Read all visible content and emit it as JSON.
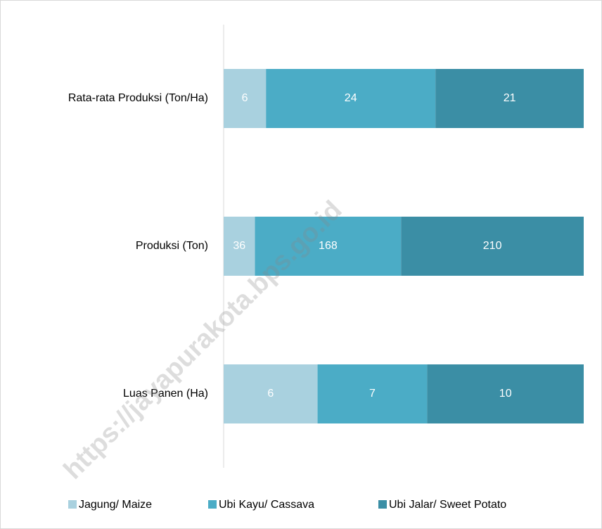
{
  "chart_data": {
    "type": "bar",
    "orientation": "horizontal",
    "stacking": "percent",
    "categories": [
      "Rata-rata Produksi (Ton/Ha)",
      "Produksi (Ton)",
      "Luas Panen (Ha)"
    ],
    "series": [
      {
        "name": "Jagung/ Maize",
        "color": "#a9d1df",
        "values": [
          6,
          36,
          6
        ]
      },
      {
        "name": "Ubi Kayu/ Cassava",
        "color": "#4bacc6",
        "values": [
          24,
          168,
          7
        ]
      },
      {
        "name": "Ubi Jalar/ Sweet Potato",
        "color": "#3b8ea5",
        "values": [
          21,
          210,
          10
        ]
      }
    ],
    "legend": "bottom",
    "watermark": "https://jayapurakota.bps.go.id"
  }
}
